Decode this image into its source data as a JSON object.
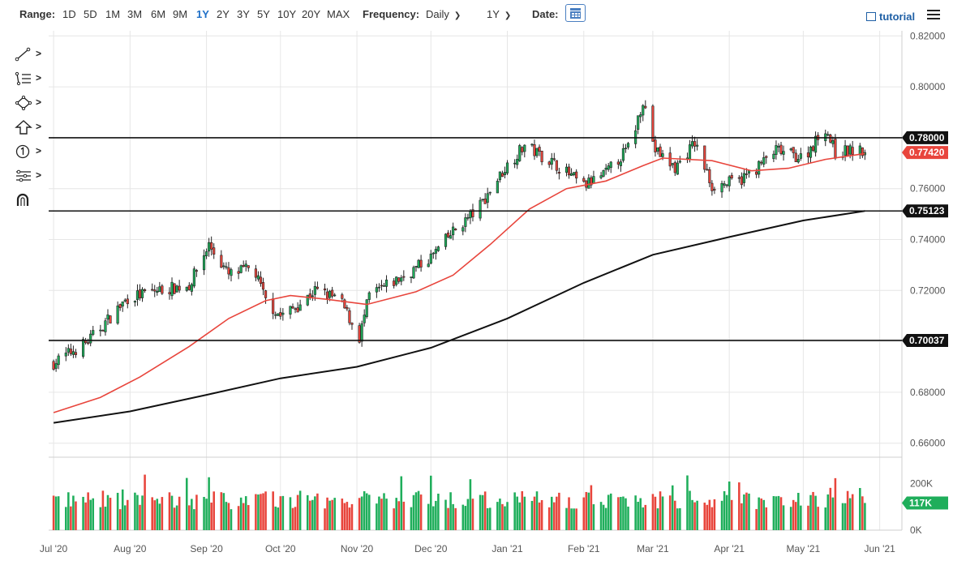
{
  "toolbar": {
    "range_label": "Range:",
    "ranges": [
      "1D",
      "5D",
      "1M",
      "3M",
      "6M",
      "9M",
      "1Y",
      "2Y",
      "3Y",
      "5Y",
      "10Y",
      "20Y",
      "MAX"
    ],
    "active_range": "1Y",
    "frequency_label": "Frequency:",
    "frequency_value": "Daily",
    "period_value": "1Y",
    "date_label": "Date:",
    "tutorial_label": "tutorial"
  },
  "tools": [
    {
      "name": "line-tool",
      "icon": "line-icon"
    },
    {
      "name": "studies-tool",
      "icon": "list-icon"
    },
    {
      "name": "shapes-tool",
      "icon": "diamond-icon"
    },
    {
      "name": "arrow-tool",
      "icon": "arrow-up-icon"
    },
    {
      "name": "annotation-tool",
      "icon": "number-one-icon"
    },
    {
      "name": "settings-tool",
      "icon": "sliders-icon"
    },
    {
      "name": "magnet-tool",
      "icon": "magnet-icon"
    }
  ],
  "chart_data": {
    "type": "candlestick",
    "price_axis": {
      "ticks": [
        "0.82000",
        "0.80000",
        "0.78000",
        "0.76000",
        "0.74000",
        "0.72000",
        "0.70000",
        "0.68000",
        "0.66000"
      ],
      "range": [
        0.6545,
        0.822
      ]
    },
    "volume_axis": {
      "ticks": [
        "200K",
        "0K"
      ],
      "max": 300000
    },
    "x_labels": [
      "Jul '20",
      "Aug '20",
      "Sep '20",
      "Oct '20",
      "Nov '20",
      "Dec '20",
      "Jan '21",
      "Feb '21",
      "Mar '21",
      "Apr '21",
      "May '21",
      "Jun '21"
    ],
    "horizontal_lines": [
      {
        "value": 0.78,
        "label": "0.78000"
      },
      {
        "value": 0.75123,
        "label": "0.75123"
      },
      {
        "value": 0.70037,
        "label": "0.70037"
      }
    ],
    "last_price": {
      "value": 0.7742,
      "label": "0.77420",
      "color": "#e8453c"
    },
    "last_volume": {
      "value": 117000,
      "label": "117K",
      "color": "#1fae5b"
    },
    "moving_averages": [
      {
        "color": "#e8453c",
        "points": [
          [
            "2020-07-01",
            0.672
          ],
          [
            "2020-07-20",
            0.678
          ],
          [
            "2020-08-05",
            0.686
          ],
          [
            "2020-08-25",
            0.698
          ],
          [
            "2020-09-10",
            0.709
          ],
          [
            "2020-09-25",
            0.716
          ],
          [
            "2020-10-05",
            0.718
          ],
          [
            "2020-10-20",
            0.7165
          ],
          [
            "2020-11-05",
            0.7145
          ],
          [
            "2020-11-25",
            0.7195
          ],
          [
            "2020-12-10",
            0.726
          ],
          [
            "2020-12-25",
            0.738
          ],
          [
            "2021-01-10",
            0.752
          ],
          [
            "2021-01-25",
            0.76
          ],
          [
            "2021-02-10",
            0.763
          ],
          [
            "2021-02-25",
            0.769
          ],
          [
            "2021-03-05",
            0.772
          ],
          [
            "2021-03-25",
            0.771
          ],
          [
            "2021-04-10",
            0.767
          ],
          [
            "2021-04-25",
            0.768
          ],
          [
            "2021-05-10",
            0.7715
          ],
          [
            "2021-05-26",
            0.7738
          ]
        ]
      },
      {
        "color": "#111111",
        "points": [
          [
            "2020-07-01",
            0.668
          ],
          [
            "2020-08-01",
            0.6725
          ],
          [
            "2020-09-01",
            0.679
          ],
          [
            "2020-10-01",
            0.6855
          ],
          [
            "2020-11-01",
            0.69
          ],
          [
            "2020-12-01",
            0.6975
          ],
          [
            "2021-01-01",
            0.709
          ],
          [
            "2021-02-01",
            0.723
          ],
          [
            "2021-03-01",
            0.734
          ],
          [
            "2021-04-01",
            0.741
          ],
          [
            "2021-05-01",
            0.7475
          ],
          [
            "2021-05-26",
            0.7512
          ]
        ]
      }
    ],
    "ohlc_anchors": [
      [
        "2020-07-01",
        0.6915
      ],
      [
        "2020-07-15",
        0.7
      ],
      [
        "2020-07-31",
        0.717
      ],
      [
        "2020-08-12",
        0.72
      ],
      [
        "2020-08-25",
        0.722
      ],
      [
        "2020-09-02",
        0.738
      ],
      [
        "2020-09-10",
        0.726
      ],
      [
        "2020-09-20",
        0.729
      ],
      [
        "2020-09-25",
        0.716
      ],
      [
        "2020-10-01",
        0.71
      ],
      [
        "2020-10-08",
        0.714
      ],
      [
        "2020-10-15",
        0.72
      ],
      [
        "2020-10-25",
        0.7165
      ],
      [
        "2020-11-02",
        0.7015
      ],
      [
        "2020-11-06",
        0.718
      ],
      [
        "2020-11-20",
        0.7255
      ],
      [
        "2020-12-01",
        0.733
      ],
      [
        "2020-12-10",
        0.743
      ],
      [
        "2020-12-20",
        0.752
      ],
      [
        "2020-12-31",
        0.768
      ],
      [
        "2021-01-08",
        0.777
      ],
      [
        "2021-01-20",
        0.77
      ],
      [
        "2021-02-01",
        0.761
      ],
      [
        "2021-02-10",
        0.766
      ],
      [
        "2021-02-20",
        0.777
      ],
      [
        "2021-02-25",
        0.795
      ],
      [
        "2021-03-02",
        0.775
      ],
      [
        "2021-03-10",
        0.768
      ],
      [
        "2021-03-18",
        0.778
      ],
      [
        "2021-03-25",
        0.761
      ],
      [
        "2021-04-05",
        0.763
      ],
      [
        "2021-04-12",
        0.768
      ],
      [
        "2021-04-20",
        0.775
      ],
      [
        "2021-05-01",
        0.772
      ],
      [
        "2021-05-10",
        0.784
      ],
      [
        "2021-05-14",
        0.774
      ],
      [
        "2021-05-20",
        0.775
      ],
      [
        "2021-05-26",
        0.7742
      ]
    ]
  }
}
